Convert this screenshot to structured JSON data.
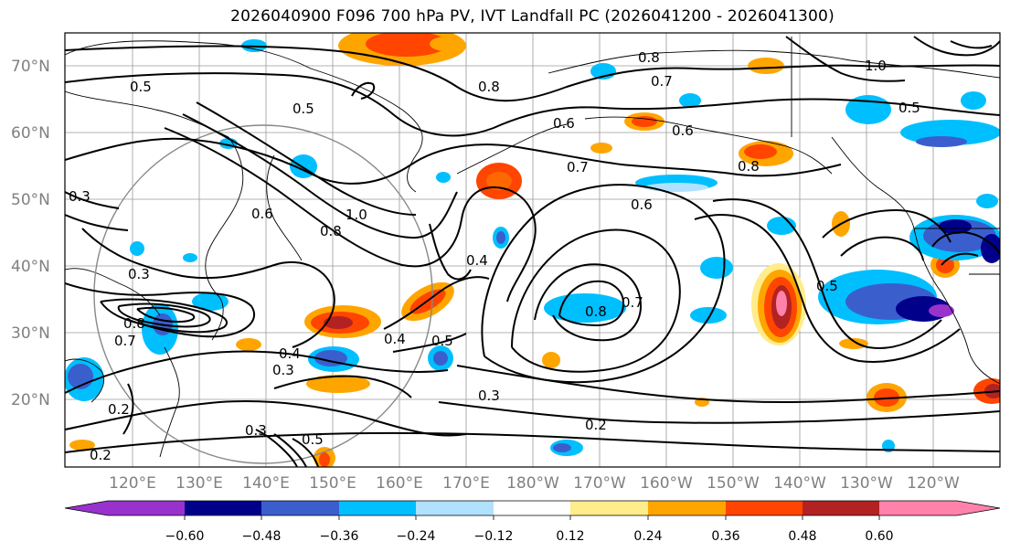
{
  "map": {
    "title": "2026040900 F096 700 hPa PV, IVT Landfall PC (2026041200 - 2026041300)",
    "lat_labels": [
      "70°N",
      "60°N",
      "50°N",
      "40°N",
      "30°N",
      "20°N"
    ],
    "lon_labels": [
      "120°E",
      "130°E",
      "140°E",
      "150°E",
      "160°E",
      "170°E",
      "180°W",
      "170°W",
      "160°W",
      "150°W",
      "140°W",
      "130°W",
      "120°W"
    ],
    "contour_labels": [
      "0.5",
      "0.5",
      "0.8",
      "0.7",
      "0.6",
      "0.6",
      "0.7",
      "0.8",
      "0.8",
      "1.0",
      "0.5",
      "0.6",
      "0.8",
      "1.0",
      "0.8",
      "0.7",
      "0.6",
      "0.4",
      "0.5",
      "0.4",
      "0.3",
      "0.3",
      "0.2",
      "0.8",
      "0.7",
      "0.3",
      "0.2",
      "0.3",
      "0.5",
      "0.2",
      "0.3",
      "0.5",
      "0.4"
    ]
  },
  "colorbar": {
    "ticks": [
      "−0.60",
      "−0.48",
      "−0.36",
      "−0.24",
      "−0.12",
      "0.12",
      "0.24",
      "0.36",
      "0.48",
      "0.60"
    ],
    "colors": [
      "#9932cc",
      "#00008b",
      "#3a5fcd",
      "#00bfff",
      "#b0e2ff",
      "#ffffff",
      "#ffec8b",
      "#ffa500",
      "#ff4500",
      "#b22222",
      "#ff82ab"
    ]
  }
}
